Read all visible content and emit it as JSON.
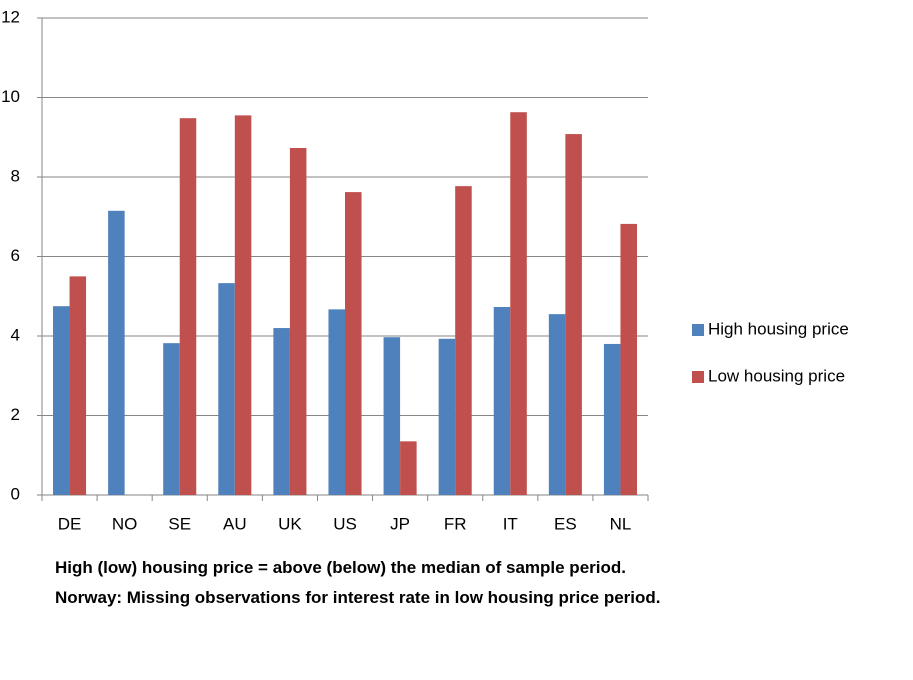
{
  "chart_data": {
    "type": "bar",
    "categories": [
      "DE",
      "NO",
      "SE",
      "AU",
      "UK",
      "US",
      "JP",
      "FR",
      "IT",
      "ES",
      "NL"
    ],
    "series": [
      {
        "name": "High housing price",
        "color": "#4f81bd",
        "values": [
          4.75,
          7.15,
          3.82,
          5.33,
          4.2,
          4.67,
          3.97,
          3.93,
          4.73,
          4.55,
          3.8
        ]
      },
      {
        "name": "Low housing price",
        "color": "#c0504d",
        "values": [
          5.5,
          null,
          9.48,
          9.55,
          8.73,
          7.62,
          1.35,
          7.77,
          9.63,
          9.08,
          6.82
        ]
      }
    ],
    "ylim": [
      0,
      12
    ],
    "yticks": [
      0,
      2,
      4,
      6,
      8,
      10,
      12
    ],
    "grid": true,
    "legend": "right",
    "notes": [
      "High (low) housing price = above (below) the median of sample period.",
      "Norway: Missing observations for interest rate in low housing price period."
    ]
  }
}
